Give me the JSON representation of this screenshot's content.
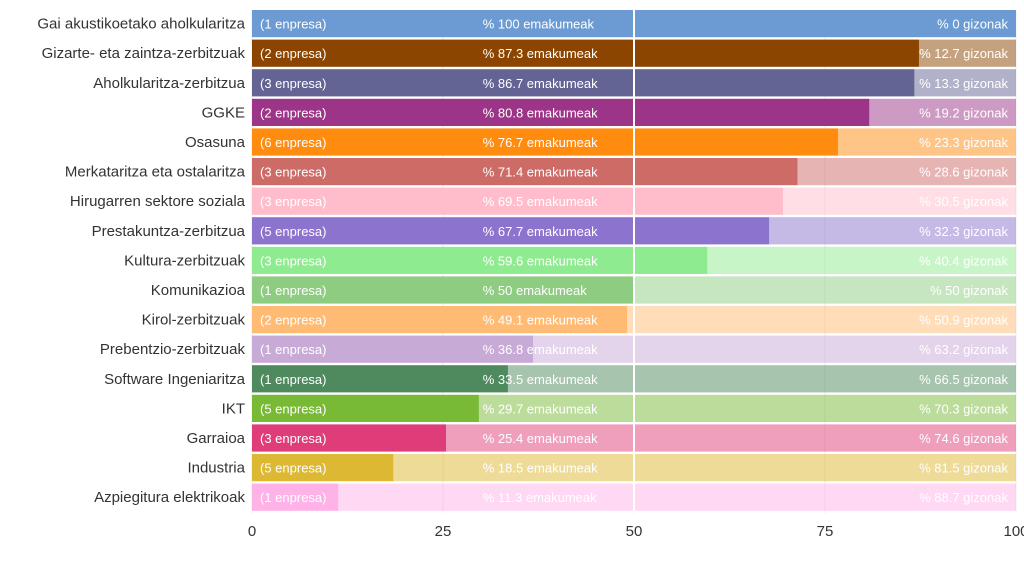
{
  "chart_data": {
    "type": "bar",
    "orientation": "horizontal",
    "stacked": true,
    "xlim": [
      0,
      100
    ],
    "x_ticks": [
      "0",
      "25",
      "50",
      "75",
      "100"
    ],
    "grid": "vertical",
    "reference_line": 50,
    "categories": [
      "Gai akustikoetako aholkularitza",
      "Gizarte- eta zaintza-zerbitzuak",
      "Aholkularitza-zerbitzua",
      "GGKE",
      "Osasuna",
      "Merkataritza eta ostalaritza",
      "Hirugarren sektore soziala",
      "Prestakuntza-zerbitzua",
      "Kultura-zerbitzuak",
      "Komunikazioa",
      "Kirol-zerbitzuak",
      "Prebentzio-zerbitzuak",
      "Software Ingeniaritza",
      "IKT",
      "Garraioa",
      "Industria",
      "Azpiegitura elektrikoak"
    ],
    "companies": [
      "(1 enpresa)",
      "(2 enpresa)",
      "(3 enpresa)",
      "(2 enpresa)",
      "(6 enpresa)",
      "(3 enpresa)",
      "(3 enpresa)",
      "(5 enpresa)",
      "(3 enpresa)",
      "(1 enpresa)",
      "(2 enpresa)",
      "(1 enpresa)",
      "(1 enpresa)",
      "(5 enpresa)",
      "(3 enpresa)",
      "(5 enpresa)",
      "(1 enpresa)"
    ],
    "women_values": [
      100,
      87.3,
      86.7,
      80.8,
      76.7,
      71.4,
      69.5,
      67.7,
      59.6,
      50,
      49.1,
      36.8,
      33.5,
      29.7,
      25.4,
      18.5,
      11.3
    ],
    "men_values": [
      0,
      12.7,
      13.3,
      19.2,
      23.3,
      28.6,
      30.5,
      32.3,
      40.4,
      50,
      50.9,
      63.2,
      66.5,
      70.3,
      74.6,
      81.5,
      88.7
    ],
    "women_labels": [
      "% 100 emakumeak",
      "% 87.3 emakumeak",
      "% 86.7 emakumeak",
      "% 80.8 emakumeak",
      "% 76.7 emakumeak",
      "% 71.4 emakumeak",
      "% 69.5 emakumeak",
      "% 67.7 emakumeak",
      "% 59.6 emakumeak",
      "% 50 emakumeak",
      "% 49.1 emakumeak",
      "% 36.8 emakumeak",
      "% 33.5 emakumeak",
      "% 29.7 emakumeak",
      "% 25.4 emakumeak",
      "% 18.5 emakumeak",
      "% 11.3 emakumeak"
    ],
    "men_labels": [
      "% 0 gizonak",
      "% 12.7 gizonak",
      "% 13.3 gizonak",
      "% 19.2 gizonak",
      "% 23.3 gizonak",
      "% 28.6 gizonak",
      "% 30.5 gizonak",
      "% 32.3 gizonak",
      "% 40.4 gizonak",
      "% 50 gizonak",
      "% 50.9 gizonak",
      "% 63.2 gizonak",
      "% 66.5 gizonak",
      "% 70.3 gizonak",
      "% 74.6 gizonak",
      "% 81.5 gizonak",
      "% 88.7 gizonak"
    ],
    "colors": [
      "#6B9BD2",
      "#8B4500",
      "#636394",
      "#9C3587",
      "#FF8C0F",
      "#CD6B67",
      "#FFBDCC",
      "#8C73CD",
      "#8FEB8F",
      "#8ECD81",
      "#FFBB73",
      "#C8AAD7",
      "#4E8A5E",
      "#78B935",
      "#DF3D79",
      "#DDB832",
      "#FFB2E8"
    ],
    "men_opacity": 0.5
  }
}
